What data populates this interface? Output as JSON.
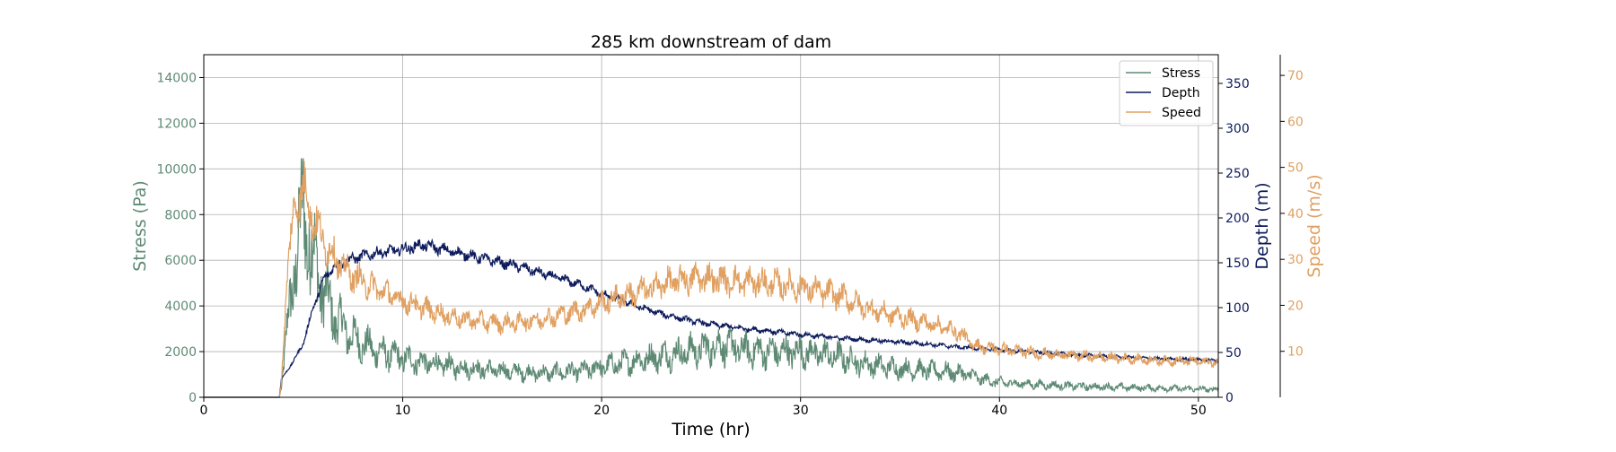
{
  "chart_data": {
    "type": "line",
    "title": "285 km downstream of dam",
    "xlabel": "Time (hr)",
    "xlim": [
      0,
      51
    ],
    "xticks": [
      0,
      10,
      20,
      30,
      40,
      50
    ],
    "grid": true,
    "legend_position": "top-right",
    "axes": {
      "stress": {
        "label": "Stress (Pa)",
        "ylim": [
          0,
          15000
        ],
        "ticks": [
          0,
          2000,
          4000,
          6000,
          8000,
          10000,
          12000,
          14000
        ],
        "color": "#5e8a74"
      },
      "depth": {
        "label": "Depth (m)",
        "ylim": [
          0,
          382
        ],
        "ticks": [
          0,
          50,
          100,
          150,
          200,
          250,
          300,
          350
        ],
        "color": "#0d1b5c"
      },
      "speed": {
        "label": "Speed (m/s)",
        "ylim": [
          0,
          74.5
        ],
        "ticks": [
          10,
          20,
          30,
          40,
          50,
          60,
          70
        ],
        "color": "#e0a061"
      }
    },
    "series": [
      {
        "name": "Stress",
        "axis": "stress",
        "color": "#5e8a74",
        "noise": 0.45,
        "x": [
          0,
          3.8,
          3.9,
          4.2,
          4.6,
          5.0,
          5.3,
          5.8,
          6.5,
          7.5,
          8.5,
          10,
          11.5,
          13,
          15,
          17,
          19,
          21,
          23,
          25,
          26,
          27,
          28,
          30,
          31,
          32,
          33,
          35,
          37,
          38.5,
          39,
          40,
          42,
          44,
          46,
          48,
          50,
          51
        ],
        "y": [
          0,
          0,
          500,
          3000,
          6000,
          8100,
          7000,
          5200,
          3600,
          2600,
          2100,
          1700,
          1450,
          1300,
          1150,
          1050,
          1150,
          1500,
          1800,
          2100,
          2300,
          2100,
          2000,
          2000,
          1900,
          1750,
          1500,
          1250,
          1150,
          1000,
          800,
          650,
          550,
          480,
          440,
          400,
          360,
          340
        ]
      },
      {
        "name": "Depth",
        "axis": "depth",
        "color": "#0d1b5c",
        "noise": 0.05,
        "x": [
          0,
          3.8,
          3.9,
          4.5,
          5.0,
          5.5,
          6.0,
          6.5,
          7.5,
          8.5,
          10,
          11,
          12,
          13,
          14,
          15,
          16,
          17,
          18,
          19,
          20,
          21,
          22,
          23,
          24,
          25,
          26,
          27,
          28,
          30,
          32,
          34,
          36,
          38,
          40,
          42,
          44,
          46,
          48,
          50,
          51
        ],
        "y": [
          0,
          0,
          20,
          40,
          60,
          100,
          130,
          145,
          155,
          160,
          165,
          170,
          165,
          160,
          155,
          150,
          145,
          138,
          132,
          125,
          115,
          108,
          100,
          93,
          88,
          83,
          80,
          77,
          75,
          70,
          66,
          63,
          60,
          56,
          53,
          50,
          47,
          45,
          43,
          42,
          41
        ]
      },
      {
        "name": "Speed",
        "axis": "speed",
        "color": "#e0a061",
        "noise": 0.16,
        "x": [
          0,
          3.8,
          3.9,
          4.2,
          4.6,
          5.0,
          5.4,
          6.0,
          7.0,
          8.0,
          9.0,
          10,
          11,
          12,
          13,
          14,
          15,
          16,
          17,
          18,
          19,
          20,
          21,
          22,
          23,
          24,
          25,
          26,
          27,
          28,
          29,
          30,
          31,
          32,
          33,
          34,
          35,
          36,
          37,
          38,
          38.5,
          39,
          40,
          42,
          44,
          46,
          48,
          50,
          51
        ],
        "y": [
          0,
          0,
          3,
          28,
          42,
          46,
          40,
          34,
          28,
          25,
          23,
          21,
          19.5,
          18,
          17,
          16.5,
          16,
          16.5,
          17,
          18,
          19,
          20.5,
          22,
          23,
          24.5,
          25.5,
          26,
          25.5,
          25,
          25,
          24.5,
          24,
          23,
          22,
          20,
          18.5,
          17.5,
          16.5,
          15.5,
          14,
          12,
          11,
          10.5,
          9.5,
          9,
          8.5,
          8,
          7.8,
          7.6
        ]
      }
    ]
  }
}
